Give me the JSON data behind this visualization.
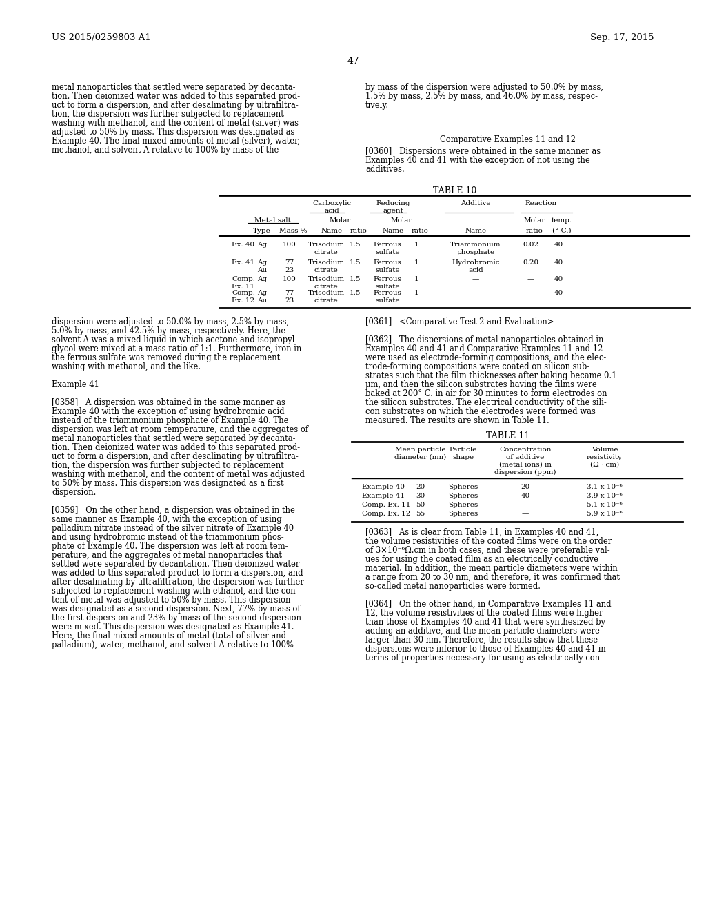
{
  "page_number": "47",
  "header_left": "US 2015/0259803 A1",
  "header_right": "Sep. 17, 2015",
  "background_color": "#ffffff"
}
